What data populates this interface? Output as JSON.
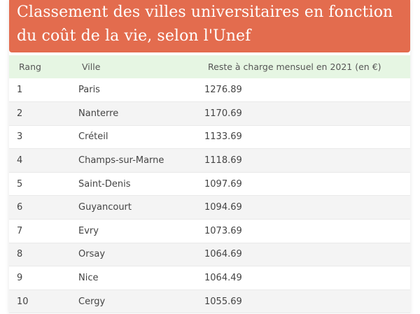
{
  "chart_data": {
    "type": "table",
    "title": "Classement des villes universitaires en fonction du coût de la vie, selon l'Unef",
    "columns": [
      "Rang",
      "Ville",
      "Reste à charge mensuel en 2021 (en €)"
    ],
    "rows": [
      [
        "1",
        "Paris",
        "1276.89"
      ],
      [
        "2",
        "Nanterre",
        "1170.69"
      ],
      [
        "3",
        "Créteil",
        "1133.69"
      ],
      [
        "4",
        "Champs-sur-Marne",
        "1118.69"
      ],
      [
        "5",
        "Saint-Denis",
        "1097.69"
      ],
      [
        "6",
        "Guyancourt",
        "1094.69"
      ],
      [
        "7",
        "Evry",
        "1073.69"
      ],
      [
        "8",
        "Orsay",
        "1064.69"
      ],
      [
        "9",
        "Nice",
        "1064.49"
      ],
      [
        "10",
        "Cergy",
        "1055.69"
      ]
    ]
  },
  "colors": {
    "title_banner": "#e36c4e",
    "title_text": "#ffffff",
    "header_row": "#e6f6e3",
    "alt_row": "#f4f4f4",
    "text": "#444444"
  }
}
